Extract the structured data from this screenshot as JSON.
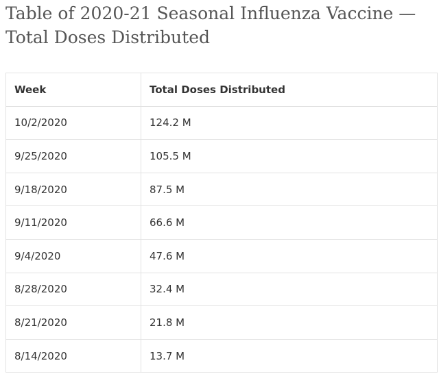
{
  "title": "Table of 2020-21 Seasonal Influenza Vaccine — Total Doses Distributed",
  "table": {
    "header": [
      "Week",
      "Total Doses Distributed"
    ],
    "rows": [
      [
        "10/2/2020",
        "124.2 M"
      ],
      [
        "9/25/2020",
        "105.5 M"
      ],
      [
        "9/18/2020",
        "87.5 M"
      ],
      [
        "9/11/2020",
        "66.6 M"
      ],
      [
        "9/4/2020",
        "47.6 M"
      ],
      [
        "8/28/2020",
        "32.4 M"
      ],
      [
        "8/21/2020",
        "21.8 M"
      ],
      [
        "8/14/2020",
        "13.7 M"
      ]
    ]
  }
}
